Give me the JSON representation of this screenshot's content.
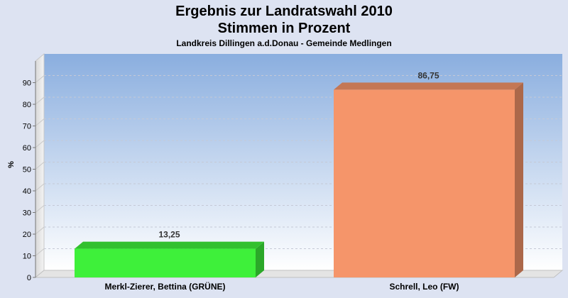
{
  "chart_data": {
    "type": "bar",
    "title": "Ergebnis zur Landratswahl 2010",
    "subtitle": "Stimmen in Prozent",
    "subtitle2": "Landkreis Dillingen a.d.Donau - Gemeinde Medlingen",
    "ylabel": "%",
    "ylim": [
      0,
      100
    ],
    "yticks": [
      0,
      10,
      20,
      30,
      40,
      50,
      60,
      70,
      80,
      90
    ],
    "grid": true,
    "categories": [
      "Merkl-Zierer, Bettina (GRÜNE)",
      "Schrell, Leo (FW)"
    ],
    "values": [
      13.25,
      86.75
    ],
    "value_labels": [
      "13,25",
      "86,75"
    ],
    "colors": [
      "#3ef03a",
      "#f5956a"
    ]
  }
}
